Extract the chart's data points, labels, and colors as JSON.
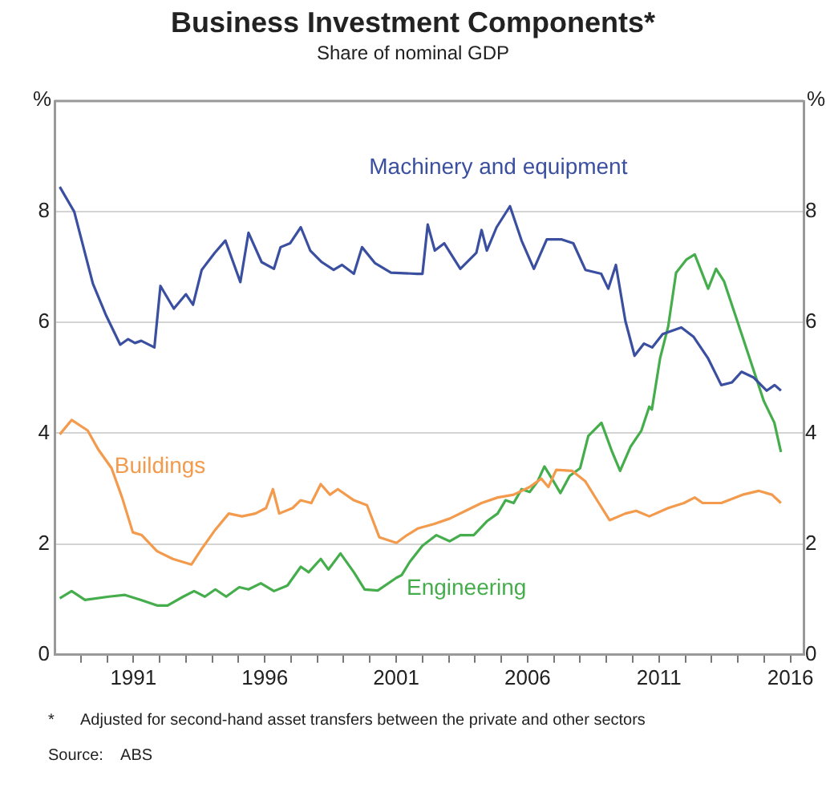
{
  "chart_data": {
    "type": "line",
    "title": "Business Investment Components*",
    "subtitle": "Share of nominal GDP",
    "ylabel": "%",
    "y2label": "%",
    "xlim": [
      1988,
      2016.5
    ],
    "xticks": [
      {
        "value": 1989,
        "label": null
      },
      {
        "value": 1990,
        "label": null
      },
      {
        "value": 1991,
        "label": "1991"
      },
      {
        "value": 1992,
        "label": null
      },
      {
        "value": 1993,
        "label": null
      },
      {
        "value": 1994,
        "label": null
      },
      {
        "value": 1995,
        "label": null
      },
      {
        "value": 1996,
        "label": "1996"
      },
      {
        "value": 1997,
        "label": null
      },
      {
        "value": 1998,
        "label": null
      },
      {
        "value": 1999,
        "label": null
      },
      {
        "value": 2000,
        "label": null
      },
      {
        "value": 2001,
        "label": "2001"
      },
      {
        "value": 2002,
        "label": null
      },
      {
        "value": 2003,
        "label": null
      },
      {
        "value": 2004,
        "label": null
      },
      {
        "value": 2005,
        "label": null
      },
      {
        "value": 2006,
        "label": "2006"
      },
      {
        "value": 2007,
        "label": null
      },
      {
        "value": 2008,
        "label": null
      },
      {
        "value": 2009,
        "label": null
      },
      {
        "value": 2010,
        "label": null
      },
      {
        "value": 2011,
        "label": "2011"
      },
      {
        "value": 2012,
        "label": null
      },
      {
        "value": 2013,
        "label": null
      },
      {
        "value": 2014,
        "label": null
      },
      {
        "value": 2015,
        "label": null
      },
      {
        "value": 2016,
        "label": "2016"
      }
    ],
    "ylim": [
      0,
      10
    ],
    "yticks": [
      0,
      2,
      4,
      6,
      8
    ],
    "y2lim": [
      0,
      10
    ],
    "y2ticks": [
      0,
      2,
      4,
      6,
      8
    ],
    "grid": "y",
    "legend": false,
    "series": [
      {
        "name": "Machinery and equipment",
        "color": "#3b4fa0",
        "x": [
          1988.2,
          1988.75,
          1989.46,
          1989.97,
          1990.5,
          1990.8,
          1991.06,
          1991.3,
          1991.8,
          1992.03,
          1992.54,
          1993.0,
          1993.27,
          1993.6,
          1994.1,
          1994.5,
          1995.07,
          1995.38,
          1995.88,
          1996.35,
          1996.6,
          1996.96,
          1997.37,
          1997.73,
          1998.17,
          1998.62,
          1998.94,
          1999.39,
          1999.7,
          2000.2,
          2000.8,
          2001.8,
          2002.0,
          2002.2,
          2002.47,
          2002.83,
          2003.44,
          2004.05,
          2004.25,
          2004.45,
          2004.82,
          2005.33,
          2005.77,
          2006.24,
          2006.73,
          2007.3,
          2007.74,
          2008.2,
          2008.8,
          2009.07,
          2009.36,
          2009.72,
          2010.07,
          2010.43,
          2010.74,
          2011.14,
          2011.85,
          2012.32,
          2012.87,
          2013.37,
          2013.78,
          2014.14,
          2014.59,
          2015.1,
          2015.4,
          2015.64
        ],
        "values": [
          8.45,
          8.0,
          6.7,
          6.12,
          5.6,
          5.7,
          5.63,
          5.67,
          5.55,
          6.66,
          6.25,
          6.51,
          6.32,
          6.95,
          7.26,
          7.48,
          6.73,
          7.62,
          7.09,
          6.97,
          7.36,
          7.43,
          7.72,
          7.3,
          7.09,
          6.95,
          7.04,
          6.88,
          7.36,
          7.07,
          6.9,
          6.88,
          6.88,
          7.77,
          7.3,
          7.43,
          6.97,
          7.26,
          7.67,
          7.3,
          7.72,
          8.1,
          7.48,
          6.97,
          7.5,
          7.5,
          7.43,
          6.95,
          6.88,
          6.61,
          7.04,
          6.03,
          5.4,
          5.62,
          5.55,
          5.79,
          5.91,
          5.74,
          5.35,
          4.87,
          4.92,
          5.11,
          5.01,
          4.77,
          4.87,
          4.77
        ]
      },
      {
        "name": "Buildings",
        "color": "#f39a4c",
        "x": [
          1988.2,
          1988.65,
          1989.26,
          1989.66,
          1990.17,
          1990.57,
          1990.98,
          1991.32,
          1991.9,
          1992.5,
          1993.21,
          1993.61,
          1994.12,
          1994.63,
          1995.13,
          1995.64,
          1996.05,
          1996.31,
          1996.55,
          1997.06,
          1997.36,
          1997.77,
          1998.13,
          1998.48,
          1998.78,
          1999.39,
          1999.89,
          2000.36,
          2001.01,
          2001.41,
          2001.82,
          2002.43,
          2003.04,
          2003.64,
          2004.25,
          2004.86,
          2005.47,
          2006.08,
          2006.52,
          2006.79,
          2007.09,
          2007.7,
          2008.2,
          2008.71,
          2009.12,
          2009.72,
          2010.13,
          2010.63,
          2011.35,
          2011.95,
          2012.36,
          2012.66,
          2013.37,
          2014.18,
          2014.79,
          2015.3,
          2015.64
        ],
        "values": [
          3.98,
          4.24,
          4.05,
          3.71,
          3.37,
          2.84,
          2.21,
          2.16,
          1.87,
          1.73,
          1.63,
          1.92,
          2.26,
          2.55,
          2.5,
          2.55,
          2.65,
          2.99,
          2.55,
          2.65,
          2.79,
          2.74,
          3.08,
          2.89,
          2.99,
          2.79,
          2.7,
          2.12,
          2.02,
          2.16,
          2.28,
          2.36,
          2.46,
          2.6,
          2.74,
          2.84,
          2.89,
          3.03,
          3.18,
          3.03,
          3.34,
          3.32,
          3.13,
          2.74,
          2.43,
          2.55,
          2.6,
          2.5,
          2.65,
          2.74,
          2.84,
          2.74,
          2.74,
          2.89,
          2.96,
          2.89,
          2.74
        ]
      },
      {
        "name": "Engineering",
        "color": "#45ad4c",
        "x": [
          1988.2,
          1988.65,
          1989.16,
          1990.07,
          1990.68,
          1991.29,
          1991.9,
          1992.3,
          1992.9,
          1993.31,
          1993.72,
          1994.12,
          1994.53,
          1995.03,
          1995.38,
          1995.85,
          1996.35,
          1996.86,
          1997.37,
          1997.67,
          1998.13,
          1998.42,
          1998.88,
          1999.39,
          1999.8,
          2000.3,
          2001.01,
          2001.21,
          2001.52,
          2002.0,
          2002.53,
          2003.04,
          2003.44,
          2003.95,
          2004.45,
          2004.86,
          2005.16,
          2005.47,
          2005.77,
          2006.08,
          2006.38,
          2006.64,
          2006.99,
          2007.25,
          2007.6,
          2008.0,
          2008.31,
          2008.81,
          2009.22,
          2009.52,
          2009.92,
          2010.33,
          2010.63,
          2010.73,
          2011.04,
          2011.35,
          2011.65,
          2012.05,
          2012.36,
          2012.87,
          2013.17,
          2013.47,
          2014.18,
          2014.99,
          2015.39,
          2015.64
        ],
        "values": [
          1.02,
          1.15,
          0.99,
          1.05,
          1.08,
          0.99,
          0.89,
          0.89,
          1.05,
          1.15,
          1.05,
          1.18,
          1.05,
          1.22,
          1.18,
          1.29,
          1.15,
          1.25,
          1.59,
          1.49,
          1.73,
          1.54,
          1.83,
          1.49,
          1.18,
          1.16,
          1.39,
          1.44,
          1.68,
          1.97,
          2.16,
          2.05,
          2.16,
          2.16,
          2.41,
          2.55,
          2.79,
          2.74,
          2.99,
          2.94,
          3.13,
          3.4,
          3.13,
          2.92,
          3.23,
          3.37,
          3.95,
          4.19,
          3.66,
          3.32,
          3.76,
          4.05,
          4.48,
          4.43,
          5.35,
          5.93,
          6.9,
          7.14,
          7.23,
          6.61,
          6.97,
          6.75,
          5.74,
          4.58,
          4.19,
          3.66
        ]
      }
    ],
    "annotations": [
      "*      Adjusted for second-hand asset transfers between the private and other sectors",
      "Source:    ABS"
    ]
  }
}
